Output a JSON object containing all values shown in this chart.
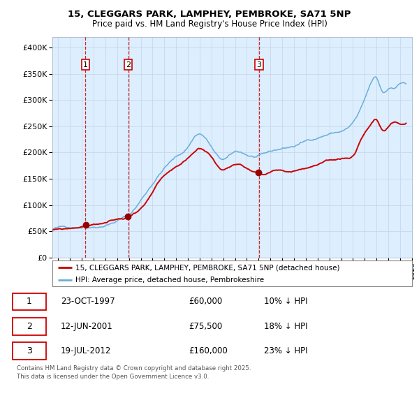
{
  "title": "15, CLEGGARS PARK, LAMPHEY, PEMBROKE, SA71 5NP",
  "subtitle": "Price paid vs. HM Land Registry's House Price Index (HPI)",
  "legend_line1": "15, CLEGGARS PARK, LAMPHEY, PEMBROKE, SA71 5NP (detached house)",
  "legend_line2": "HPI: Average price, detached house, Pembrokeshire",
  "sales": [
    {
      "num": 1,
      "date_label": "23-OCT-1997",
      "date_x": 1997.81,
      "price": 60000,
      "pct": "10% ↓ HPI"
    },
    {
      "num": 2,
      "date_label": "12-JUN-2001",
      "date_x": 2001.44,
      "price": 75500,
      "pct": "18% ↓ HPI"
    },
    {
      "num": 3,
      "date_label": "19-JUL-2012",
      "date_x": 2012.54,
      "price": 160000,
      "pct": "23% ↓ HPI"
    }
  ],
  "hpi_color": "#6aaed6",
  "price_color": "#cc0000",
  "sale_dot_color": "#990000",
  "vline_color": "#cc0000",
  "bg_shading_color": "#ddeeff",
  "grid_color": "#c8d8e8",
  "ylim": [
    0,
    420000
  ],
  "yticks": [
    0,
    50000,
    100000,
    150000,
    200000,
    250000,
    300000,
    350000,
    400000
  ],
  "xlim_start": 1995.0,
  "xlim_end": 2025.5,
  "footer": "Contains HM Land Registry data © Crown copyright and database right 2025.\nThis data is licensed under the Open Government Licence v3.0."
}
